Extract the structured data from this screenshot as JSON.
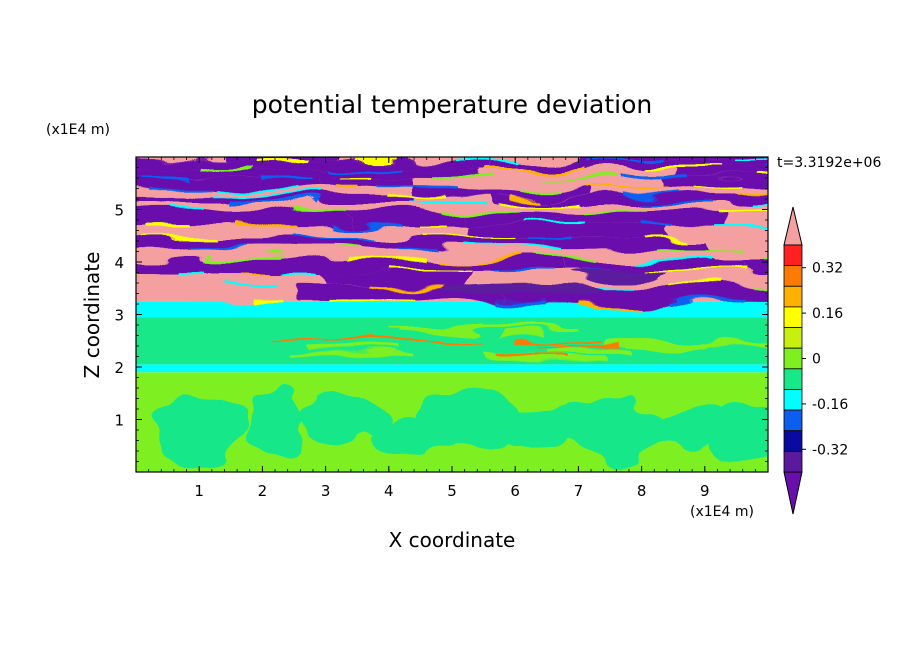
{
  "chart_data": {
    "type": "heatmap",
    "title": "potential temperature deviation",
    "xlabel": "X coordinate",
    "ylabel": "Z coordinate",
    "x_unit": "(x1E4 m)",
    "y_unit": "(x1E4 m)",
    "time_label": "t=3.3192e+06",
    "xlim": [
      0,
      10
    ],
    "ylim": [
      0,
      6
    ],
    "x_ticks": [
      1,
      2,
      3,
      4,
      5,
      6,
      7,
      8,
      9
    ],
    "y_ticks": [
      1,
      2,
      3,
      4,
      5
    ],
    "colorbar": {
      "levels": [
        -0.48,
        -0.4,
        -0.32,
        -0.24,
        -0.16,
        -0.08,
        0,
        0.08,
        0.16,
        0.24,
        0.32,
        0.4,
        0.48
      ],
      "labels": [
        "0.32",
        "0.16",
        "0",
        "-0.16",
        "-0.32"
      ],
      "label_values": [
        0.32,
        0.16,
        0,
        -0.16,
        -0.32
      ],
      "colors": [
        "#6a0dad",
        "#5b1a9e",
        "#0a0aa0",
        "#0b5ef0",
        "#00ffff",
        "#19e889",
        "#7ef021",
        "#c8f00e",
        "#ffff00",
        "#ffb000",
        "#ff7a00",
        "#ff2020",
        "#f5a0a0"
      ],
      "under_color": "#6a0dad",
      "over_color": "#f5a0a0"
    },
    "layers": [
      {
        "z_range": [
          0,
          1.9
        ],
        "dominant_value": 0.04,
        "secondary_value": -0.04
      },
      {
        "z_range": [
          1.9,
          2.05
        ],
        "dominant_value": -0.1
      },
      {
        "z_range": [
          2.05,
          2.95
        ],
        "dominant_value": -0.04,
        "secondary_value": 0.04
      },
      {
        "z_range": [
          2.95,
          3.25
        ],
        "dominant_value": -0.12
      },
      {
        "z_range": [
          3.25,
          6.0
        ],
        "dominant_value": 0.5,
        "secondary_value": -0.5
      }
    ]
  }
}
